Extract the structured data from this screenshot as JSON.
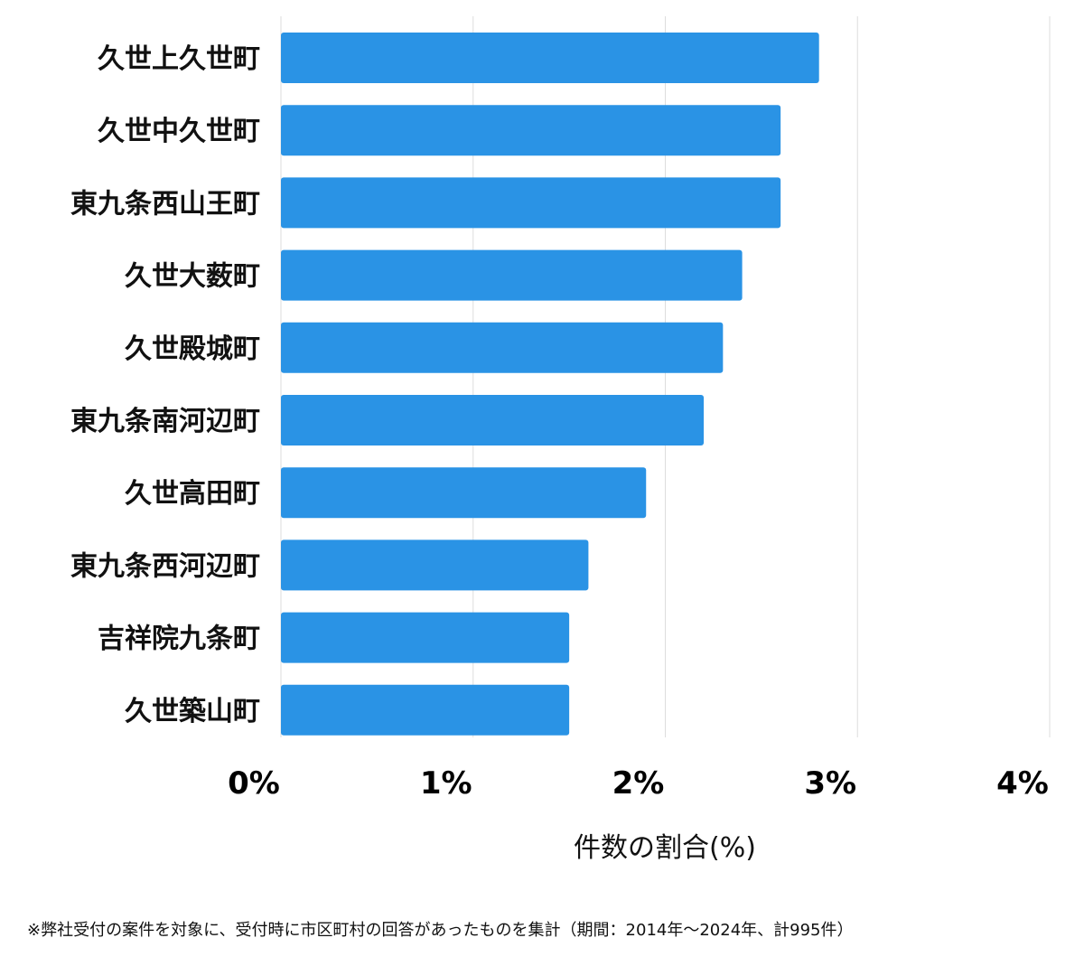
{
  "chart_data": {
    "type": "bar",
    "orientation": "horizontal",
    "categories": [
      "久世上久世町",
      "久世中久世町",
      "東九条西山王町",
      "久世大薮町",
      "久世殿城町",
      "東九条南河辺町",
      "久世高田町",
      "東九条西河辺町",
      "吉祥院九条町",
      "久世築山町"
    ],
    "values": [
      2.8,
      2.6,
      2.6,
      2.4,
      2.3,
      2.2,
      1.9,
      1.6,
      1.5,
      1.5
    ],
    "xlim": [
      0,
      4
    ],
    "xticks": [
      "0%",
      "1%",
      "2%",
      "3%",
      "4%"
    ],
    "xlabel": "件数の割合(%)",
    "bar_color": "#2A93E5",
    "grid": true
  },
  "footnote": "※弊社受付の案件を対象に、受付時に市区町村の回答があったものを集計（期間：2014年～2024年、計995件）"
}
